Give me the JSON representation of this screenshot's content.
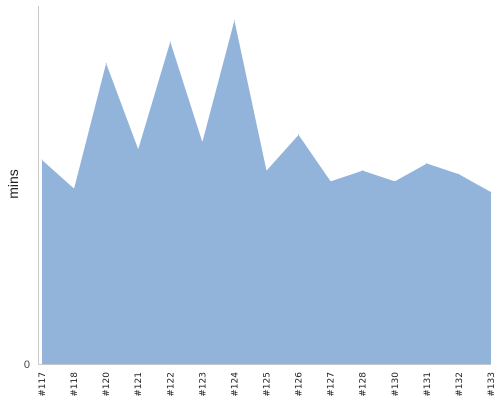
{
  "chart_data": {
    "type": "area",
    "title": "",
    "xlabel": "",
    "ylabel": "mins",
    "ylim": [
      0,
      100
    ],
    "yticks": [
      "0"
    ],
    "grid": false,
    "legend": "none",
    "color": "#92b3da",
    "categories": [
      "#117",
      "#118",
      "#120",
      "#121",
      "#122",
      "#123",
      "#124",
      "#125",
      "#126",
      "#127",
      "#128",
      "#130",
      "#131",
      "#132",
      "#133"
    ],
    "values": [
      57,
      49,
      84,
      60,
      90,
      62,
      96,
      54,
      64,
      51,
      54,
      51,
      56,
      53,
      48
    ]
  }
}
